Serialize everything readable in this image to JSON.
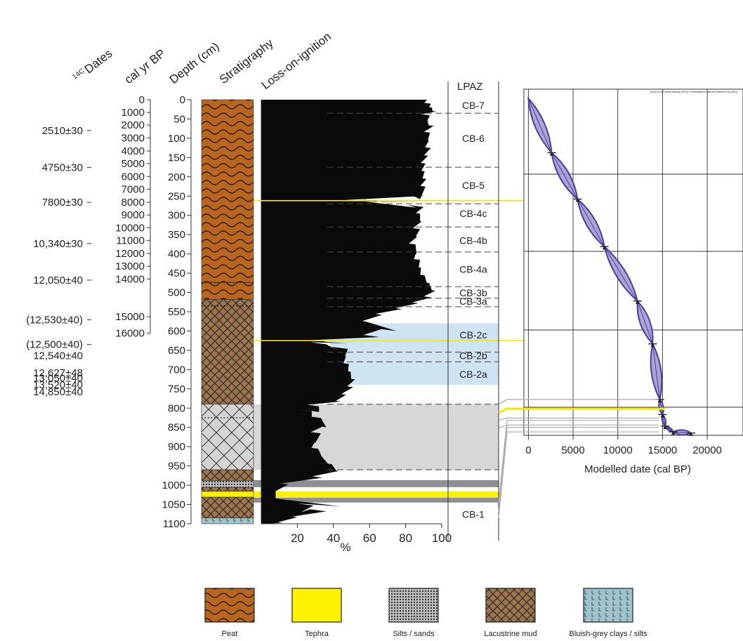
{
  "headers": {
    "c14": "Dates",
    "c14_prefix": "14C",
    "calbp": "cal yr BP",
    "depth": "Depth (cm)",
    "strat": "Stratigraphy",
    "loi": "Loss-on-ignition",
    "lpaz": "LPAZ"
  },
  "chart_data": [
    {
      "type": "area",
      "name": "loss-on-ignition",
      "xlabel": "%",
      "ylabel": "Depth (cm)",
      "xlim": [
        0,
        100
      ],
      "ylim": [
        1100,
        0
      ],
      "x_ticks": [
        "20",
        "40",
        "60",
        "80",
        "100"
      ],
      "depth_ticks": [
        "0",
        "50",
        "100",
        "150",
        "200",
        "250",
        "300",
        "350",
        "400",
        "450",
        "500",
        "550",
        "600",
        "650",
        "700",
        "750",
        "800",
        "850",
        "900",
        "950",
        "1000",
        "1050",
        "1100"
      ],
      "age_ticks": [
        {
          "label": "0",
          "depth": 0
        },
        {
          "label": "1000",
          "depth": 33
        },
        {
          "label": "2000",
          "depth": 66
        },
        {
          "label": "3000",
          "depth": 99
        },
        {
          "label": "4000",
          "depth": 133
        },
        {
          "label": "5000",
          "depth": 166
        },
        {
          "label": "6000",
          "depth": 199
        },
        {
          "label": "7000",
          "depth": 232
        },
        {
          "label": "8000",
          "depth": 266
        },
        {
          "label": "9000",
          "depth": 299
        },
        {
          "label": "10000",
          "depth": 332
        },
        {
          "label": "11000",
          "depth": 365
        },
        {
          "label": "12000",
          "depth": 399
        },
        {
          "label": "13000",
          "depth": 432
        },
        {
          "label": "14000",
          "depth": 465
        },
        {
          "label": "15000",
          "depth": 563
        },
        {
          "label": "16000",
          "depth": 606
        }
      ],
      "c14_dates": [
        {
          "label": "2510±30",
          "depth": 80
        },
        {
          "label": "4750±30",
          "depth": 176
        },
        {
          "label": "7800±30",
          "depth": 266
        },
        {
          "label": "10,340±30",
          "depth": 373
        },
        {
          "label": "12,050±40",
          "depth": 468
        },
        {
          "label": "(12,530±40)",
          "depth": 571
        },
        {
          "label": "(12,500±40)",
          "depth": 635
        },
        {
          "label": "12,540±40",
          "depth": 664
        },
        {
          "label": "12,627±48",
          "depth": 708
        },
        {
          "label": "13,050±40",
          "depth": 722
        },
        {
          "label": "13,520±40",
          "depth": 739
        },
        {
          "label": "14,850±40",
          "depth": 758
        }
      ],
      "profile": [
        [
          0,
          92
        ],
        [
          10,
          90
        ],
        [
          20,
          93
        ],
        [
          30,
          95
        ],
        [
          40,
          86
        ],
        [
          55,
          92
        ],
        [
          70,
          93
        ],
        [
          90,
          88
        ],
        [
          110,
          92
        ],
        [
          130,
          90
        ],
        [
          150,
          89
        ],
        [
          170,
          87
        ],
        [
          190,
          88
        ],
        [
          210,
          89
        ],
        [
          230,
          87
        ],
        [
          258,
          88
        ],
        [
          262,
          40
        ],
        [
          266,
          88
        ],
        [
          280,
          86
        ],
        [
          300,
          84
        ],
        [
          320,
          88
        ],
        [
          340,
          82
        ],
        [
          360,
          85
        ],
        [
          380,
          80
        ],
        [
          400,
          86
        ],
        [
          420,
          84
        ],
        [
          440,
          87
        ],
        [
          460,
          88
        ],
        [
          480,
          92
        ],
        [
          500,
          95
        ],
        [
          515,
          88
        ],
        [
          530,
          80
        ],
        [
          545,
          70
        ],
        [
          560,
          58
        ],
        [
          580,
          52
        ],
        [
          600,
          75
        ],
        [
          620,
          50
        ],
        [
          626,
          18
        ],
        [
          632,
          48
        ],
        [
          650,
          42
        ],
        [
          670,
          46
        ],
        [
          690,
          45
        ],
        [
          710,
          48
        ],
        [
          730,
          50
        ],
        [
          750,
          46
        ],
        [
          770,
          42
        ],
        [
          785,
          40
        ],
        [
          795,
          18
        ],
        [
          810,
          32
        ],
        [
          830,
          28
        ],
        [
          850,
          36
        ],
        [
          870,
          24
        ],
        [
          890,
          30
        ],
        [
          910,
          27
        ],
        [
          930,
          34
        ],
        [
          950,
          38
        ],
        [
          965,
          42
        ],
        [
          985,
          20
        ],
        [
          1000,
          4
        ],
        [
          1020,
          6
        ],
        [
          1040,
          8
        ],
        [
          1055,
          44
        ],
        [
          1070,
          22
        ],
        [
          1085,
          12
        ],
        [
          1100,
          6
        ]
      ],
      "bands": [
        {
          "from": 580,
          "to": 740,
          "kind": "light-blue"
        },
        {
          "from": 790,
          "to": 960,
          "kind": "light-grey"
        },
        {
          "from": 987,
          "to": 1005,
          "kind": "dark-grey"
        },
        {
          "from": 1032,
          "to": 1045,
          "kind": "dark-grey"
        },
        {
          "from": 1016,
          "to": 1031,
          "kind": "tephra"
        }
      ],
      "tephra_lines": [
        262,
        625
      ]
    },
    {
      "type": "table",
      "name": "lpaz",
      "zones": [
        {
          "label": "CB-7",
          "depth": 15
        },
        {
          "label": "CB-6",
          "depth": 100
        },
        {
          "label": "CB-5",
          "depth": 222
        },
        {
          "label": "CB-4c",
          "depth": 295
        },
        {
          "label": "CB-4b",
          "depth": 365
        },
        {
          "label": "CB-4a",
          "depth": 440
        },
        {
          "label": "CB-3b",
          "depth": 501
        },
        {
          "label": "CB-3a",
          "depth": 523
        },
        {
          "label": "CB-2c",
          "depth": 610
        },
        {
          "label": "CB-2b",
          "depth": 664
        },
        {
          "label": "CB-2a",
          "depth": 712
        },
        {
          "label": "CB-1",
          "depth": 1075
        }
      ],
      "boundaries": [
        35,
        175,
        270,
        330,
        395,
        485,
        515,
        537,
        655,
        680,
        790,
        960
      ]
    },
    {
      "type": "scatter",
      "name": "age-depth-model",
      "xlabel": "Modelled date (cal BP)",
      "xlim": [
        -500,
        24000
      ],
      "x_ticks": [
        "0",
        "5000",
        "10000",
        "15000",
        "20000"
      ],
      "credit": "OxCal v4.4.2 Bronk Ramsey (2020); r:5 Atmospheric data from Reimer et al (2020)",
      "nodes": [
        {
          "date": 0,
          "r": 0
        },
        {
          "date": 2600,
          "r": 0.235
        },
        {
          "date": 5500,
          "r": 0.435
        },
        {
          "date": 8500,
          "r": 0.64
        },
        {
          "date": 12200,
          "r": 0.875
        },
        {
          "date": 13900,
          "r": 1.06
        },
        {
          "date": 14700,
          "r": 1.3
        },
        {
          "date": 15000,
          "r": 1.365
        },
        {
          "date": 15300,
          "r": 1.415
        },
        {
          "date": 16200,
          "r": 1.44
        },
        {
          "date": 18200,
          "r": 1.445
        }
      ]
    }
  ],
  "legend": [
    {
      "name": "Peat",
      "pattern": "peat",
      "color": "#b8651f"
    },
    {
      "name": "Tephra",
      "pattern": "tephra",
      "color": "#fff200"
    },
    {
      "name": "Silts / sands",
      "pattern": "silts",
      "color": "#8a8a8a"
    },
    {
      "name": "Lacustrine mud",
      "pattern": "mud",
      "color": "#9a7552"
    },
    {
      "name": "Bluish-grey clays / silts",
      "pattern": "clays",
      "color": "#9ec3cc"
    }
  ],
  "colors": {
    "peat": "#b8651f",
    "mud": "#9a7552",
    "tephra": "#fff200",
    "light_blue": "#cfe4f3",
    "light_grey": "#d7d7d9",
    "dark_grey": "#8f8f8f",
    "model": "#4b3f9c",
    "model_fill": "#9b94cc"
  }
}
